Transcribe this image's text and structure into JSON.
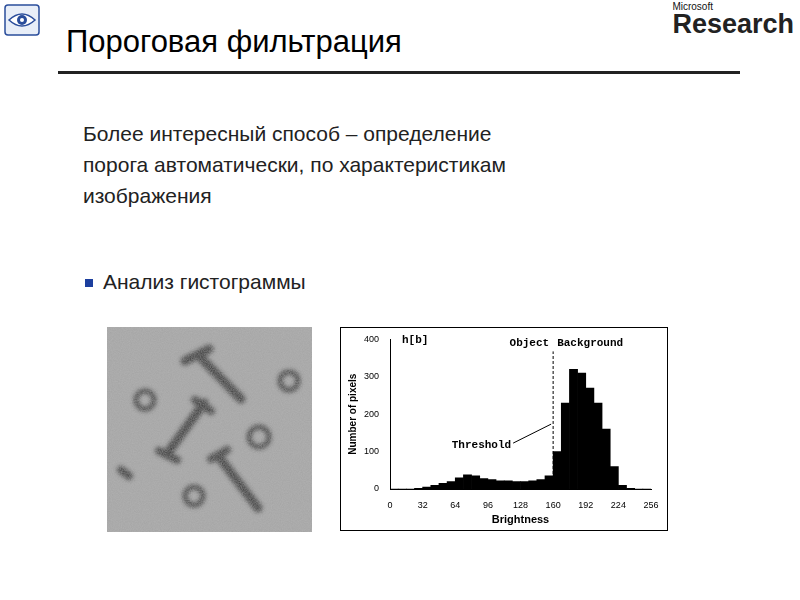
{
  "header": {
    "title": "Пороговая фильтрация",
    "logo": [
      "Microsoft",
      "Research"
    ]
  },
  "body": {
    "paragraph": [
      "Более интересный способ – определение",
      "порога автоматически, по характеристикам",
      "изображения"
    ],
    "bullets": [
      "Анализ гистограммы"
    ]
  },
  "chart_data": {
    "type": "histogram",
    "title": "h[b]",
    "x_label": "Brightness",
    "y_label": "Number of pixels",
    "bins": [
      0,
      8,
      16,
      24,
      32,
      40,
      48,
      56,
      64,
      72,
      80,
      88,
      96,
      104,
      112,
      120,
      128,
      136,
      144,
      152,
      160,
      168,
      176,
      184,
      192,
      200,
      208,
      216,
      224,
      232,
      240,
      248,
      256
    ],
    "values": [
      0,
      0,
      0,
      2,
      5,
      10,
      15,
      20,
      30,
      38,
      35,
      28,
      25,
      22,
      22,
      20,
      20,
      22,
      25,
      35,
      100,
      230,
      320,
      310,
      270,
      230,
      160,
      60,
      10,
      2,
      0,
      0
    ],
    "color": "#000000",
    "xlim": [
      0,
      256
    ],
    "xticks": [
      0,
      32,
      64,
      96,
      128,
      160,
      192,
      224,
      256
    ],
    "ylim": [
      0,
      400
    ],
    "yticks": [
      0,
      100,
      200,
      300,
      400
    ],
    "grid": false,
    "threshold": 160,
    "annotations": {
      "object": "Object",
      "background": "Background",
      "threshold": "Threshold"
    }
  }
}
